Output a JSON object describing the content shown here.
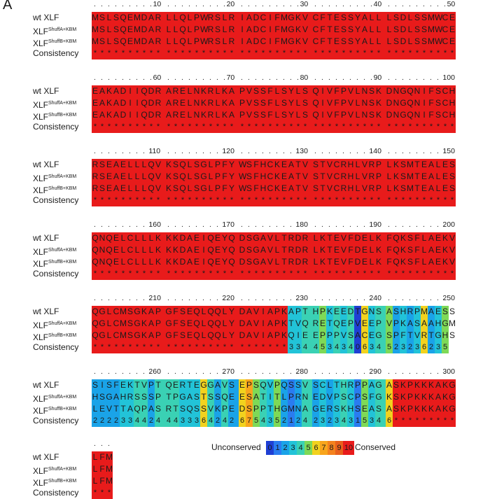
{
  "panel_label": "A",
  "row_labels": [
    {
      "base": "wt XLF",
      "sup": ""
    },
    {
      "base": "XLF",
      "sup": "ShuffA+KBM"
    },
    {
      "base": "XLF",
      "sup": "ShuffB+KBM"
    },
    {
      "base": "Consistency",
      "sup": ""
    }
  ],
  "blocks": [
    {
      "start": 1,
      "seqs": [
        "MSLSQEMDARLLQLPWRSLRIADCIFMGKVCFTESSYALLLSDLSSMWCE",
        "MSLSQEMDARLLQLPWRSLRIADCIFMGKVCFTESSYALLLSDLSSMWCE",
        "MSLSQEMDARLLQLPWRSLRIADCIFMGKVCFTESSYALLLSDLSSMWCE"
      ],
      "consistency": "**************************************************"
    },
    {
      "start": 51,
      "seqs": [
        "EAKADIIQDRARELNKRLKAPVSSFLSYLSQIVFPVLNSKDNGQNIFSCH",
        "EAKADIIQDRARELNKRLKAPVSSFLSYLSQIVFPVLNSKDNGQNIFSCH",
        "EAKADIIQDRARELNKRLKAPVSSFLSYLSQIVFPVLNSKDNGQNIFSCH"
      ],
      "consistency": "**************************************************"
    },
    {
      "start": 101,
      "seqs": [
        "RSEAELLLQVKSQLSGLPFYWSFHCKEATVSTVCRHLVRPLKSMTEALES",
        "RSEAELLLQVKSQLSGLPFYWSFHCKEATVSTVCRHLVRPLKSMTEALES",
        "RSEAELLLQVKSQLSGLPFYWSFHCKEATVSTVCRHLVRPLKSMTEALES"
      ],
      "consistency": "**************************************************"
    },
    {
      "start": 151,
      "seqs": [
        "QNQELCLLLKKKDAEIQEYQDSGAVLTRDRLKTEVFDELKFQKSFLAEKV",
        "QNQELCLLLKKKDAEIQEYQDSGAVLTRDRLKTEVFDELKFQKSFLAEKV",
        "QNQELCLLLKKKDAEIQEYQDSGAVLTRDRLKTEVFDELKFQKSFLAEKV"
      ],
      "consistency": "**************************************************"
    },
    {
      "start": 201,
      "seqs": [
        "QGLCMSGKAPGFSEQLQQLYDAVIAPKAPTHPKEEDTGNSASHRPMAESS",
        "QGLCMSGKAPGFSEQLQQLYDAVIAPKTVQRETQEPVEEPVPKASAAHGM",
        "QGLCMSGKAPGFSEQLQQLYDAVIAPKQIEEPPPVSACEGSPFTVRTGHS"
      ],
      "consistency": "***************************3344534340634523236235"
    },
    {
      "start": 251,
      "seqs": [
        "SISFEKTVPTQERTEGGAVSEPSQVPQSSVSCLTHRPPAGASKPKKKAKG",
        "HSGAHRSSSPTPGASTSSQEESATITLPRNEDVPSCPSFGKSKPKKKAKG",
        "LEVTTAQPASRTSQSSVKPEDSPPTHGMNAGERSKHSEASASKPKKKAKG"
      ],
      "consistency": "22223344244433364242675435212423234315346*********"
    },
    {
      "start": 301,
      "seqs": [
        "LFM",
        "LFM",
        "LFM"
      ],
      "consistency": "***"
    }
  ],
  "legend": {
    "left_label": "Unconserved",
    "right_label": "Conserved",
    "levels": [
      "0",
      "1",
      "2",
      "3",
      "4",
      "5",
      "6",
      "7",
      "8",
      "9",
      "10"
    ],
    "colors": [
      "#1f3fd4",
      "#2a7cf0",
      "#1aa3e8",
      "#22c3d8",
      "#3ad1b4",
      "#7ed957",
      "#f2d21e",
      "#f8a51c",
      "#f4821e",
      "#e8601c",
      "#e81b1b"
    ]
  }
}
